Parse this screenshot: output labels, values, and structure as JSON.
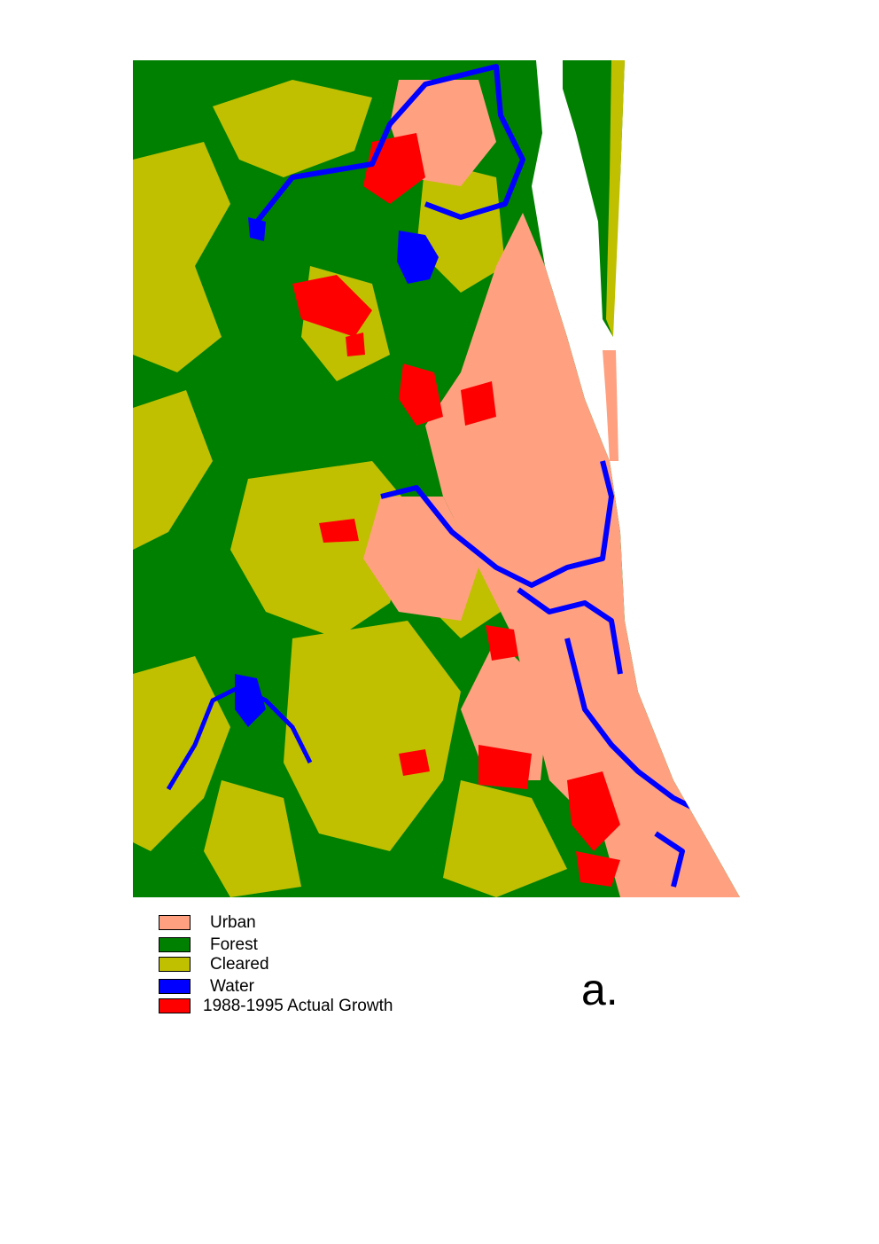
{
  "colors": {
    "urban": "#FFA080",
    "forest": "#008000",
    "cleared": "#C0C000",
    "water": "#0000FF",
    "growth": "#FF0000",
    "background": "#FFFFFF"
  },
  "legend": {
    "items": [
      {
        "label": "Urban",
        "color": "#FFA080"
      },
      {
        "label": "Forest",
        "color": "#008000"
      },
      {
        "label": "Cleared",
        "color": "#C0C000"
      },
      {
        "label": "Water",
        "color": "#0000FF"
      },
      {
        "label": "1988-1995 Actual Growth",
        "color": "#FF0000"
      }
    ]
  },
  "panel_label": "a."
}
